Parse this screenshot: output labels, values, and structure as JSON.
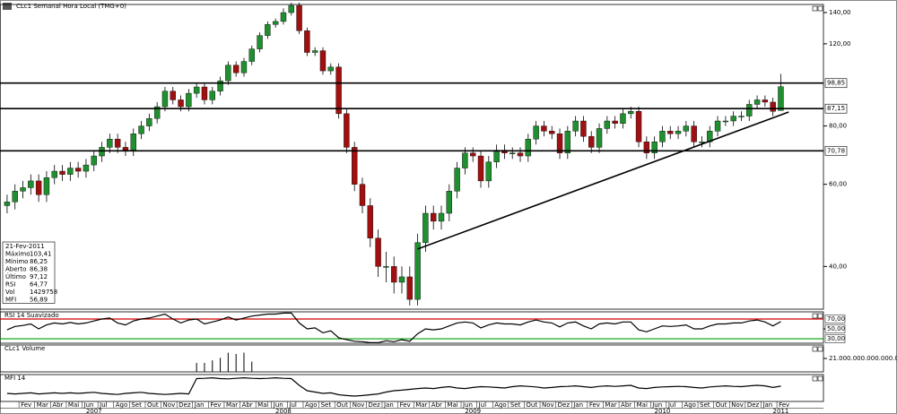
{
  "chart_data": {
    "type": "candlestick",
    "title": "CLc1 Semanal Hora Local (TMG+0)",
    "log": true,
    "up_color": "#1f8f2f",
    "down_color": "#a01010",
    "xlim": [
      -0.9,
      103.4
    ],
    "ylim": [
      32.4,
      145.7
    ],
    "yticks": [
      {
        "value": 140,
        "label": "140,00"
      },
      {
        "value": 120,
        "label": "120,00"
      },
      {
        "value": 80,
        "label": "80,00"
      },
      {
        "value": 60,
        "label": "60,00"
      },
      {
        "value": 40,
        "label": "40,00"
      }
    ],
    "xticks": [
      {
        "value": 1.5,
        "label": "Fev"
      },
      {
        "value": 3.5,
        "label": "Mar"
      },
      {
        "value": 5.5,
        "label": "Abr"
      },
      {
        "value": 7.5,
        "label": "Mai"
      },
      {
        "value": 9.5,
        "label": "Jun"
      },
      {
        "value": 11.5,
        "label": "Jul"
      },
      {
        "value": 13.5,
        "label": "Ago"
      },
      {
        "value": 15.5,
        "label": "Set"
      },
      {
        "value": 17.5,
        "label": "Out"
      },
      {
        "value": 19.5,
        "label": "Nov"
      },
      {
        "value": 21.5,
        "label": "Dez"
      },
      {
        "value": 23.5,
        "label": "Jan"
      },
      {
        "value": 25.5,
        "label": "Fev"
      },
      {
        "value": 27.5,
        "label": "Mar"
      },
      {
        "value": 29.5,
        "label": "Abr"
      },
      {
        "value": 31.5,
        "label": "Mai"
      },
      {
        "value": 33.5,
        "label": "Jun"
      },
      {
        "value": 35.5,
        "label": "Jul"
      },
      {
        "value": 37.5,
        "label": "Ago"
      },
      {
        "value": 39.5,
        "label": "Set"
      },
      {
        "value": 41.5,
        "label": "Out"
      },
      {
        "value": 43.5,
        "label": "Nov"
      },
      {
        "value": 45.5,
        "label": "Dez"
      },
      {
        "value": 47.5,
        "label": "Jan"
      },
      {
        "value": 49.5,
        "label": "Fev"
      },
      {
        "value": 51.5,
        "label": "Mar"
      },
      {
        "value": 53.5,
        "label": "Abr"
      },
      {
        "value": 55.5,
        "label": "Mai"
      },
      {
        "value": 57.5,
        "label": "Jun"
      },
      {
        "value": 59.5,
        "label": "Jul"
      },
      {
        "value": 61.5,
        "label": "Ago"
      },
      {
        "value": 63.5,
        "label": "Set"
      },
      {
        "value": 65.5,
        "label": "Out"
      },
      {
        "value": 67.5,
        "label": "Nov"
      },
      {
        "value": 69.5,
        "label": "Dez"
      },
      {
        "value": 71.5,
        "label": "Jan"
      },
      {
        "value": 73.5,
        "label": "Fev"
      },
      {
        "value": 75.5,
        "label": "Mar"
      },
      {
        "value": 77.5,
        "label": "Abr"
      },
      {
        "value": 79.5,
        "label": "Mai"
      },
      {
        "value": 81.5,
        "label": "Jun"
      },
      {
        "value": 83.5,
        "label": "Jul"
      },
      {
        "value": 85.5,
        "label": "Ago"
      },
      {
        "value": 87.5,
        "label": "Set"
      },
      {
        "value": 89.5,
        "label": "Out"
      },
      {
        "value": 91.5,
        "label": "Nov"
      },
      {
        "value": 93.5,
        "label": "Dez"
      },
      {
        "value": 95.5,
        "label": "Jan"
      },
      {
        "value": 97.5,
        "label": "Fev"
      }
    ],
    "year_labels": [
      {
        "value": 11,
        "label": "2007"
      },
      {
        "value": 35,
        "label": "2008"
      },
      {
        "value": 59,
        "label": "2009"
      },
      {
        "value": 83,
        "label": "2010"
      },
      {
        "value": 98,
        "label": "2011"
      }
    ],
    "open": [
      54,
      55,
      58,
      59,
      61,
      57,
      62,
      64,
      63,
      65,
      64,
      66,
      69,
      72,
      75,
      72,
      71,
      77,
      80,
      83,
      88,
      95,
      91,
      88,
      94,
      97,
      91,
      95,
      100,
      108,
      104,
      110,
      117,
      125,
      132,
      134,
      140,
      145,
      128,
      115,
      116,
      105,
      107,
      85,
      72,
      60,
      54,
      46,
      40,
      40,
      37,
      38,
      34,
      45,
      52,
      50,
      52,
      58,
      65,
      70,
      69,
      61,
      67,
      71,
      70,
      70,
      69,
      75,
      80,
      78,
      77,
      70,
      78,
      82,
      76,
      72,
      79,
      82,
      81,
      85,
      86,
      74,
      70,
      74,
      78,
      77,
      78,
      80,
      74,
      74,
      78,
      82,
      82,
      84,
      84,
      89,
      91,
      90,
      86.38
    ],
    "high": [
      57,
      60,
      61,
      63,
      63,
      64,
      66,
      66,
      67,
      67,
      68,
      71,
      74,
      77,
      77,
      74,
      79,
      82,
      85,
      90,
      97,
      97,
      93,
      96,
      99,
      99,
      97,
      102,
      110,
      110,
      112,
      119,
      127,
      134,
      136,
      143,
      147,
      147,
      130,
      118,
      118,
      109,
      109,
      87,
      74,
      62,
      56,
      48,
      43,
      42,
      40,
      40,
      47,
      54,
      54,
      54,
      60,
      67,
      72,
      72,
      71,
      69,
      73,
      73,
      72,
      72,
      77,
      82,
      82,
      80,
      79,
      80,
      84,
      84,
      78,
      81,
      84,
      84,
      87,
      88,
      88,
      76,
      76,
      80,
      80,
      80,
      82,
      82,
      76,
      80,
      84,
      84,
      86,
      86,
      91,
      93,
      93,
      92,
      103.41
    ],
    "low": [
      52,
      53,
      56,
      57,
      55,
      55,
      60,
      61,
      61,
      62,
      62,
      64,
      67,
      70,
      70,
      69,
      69,
      75,
      78,
      81,
      86,
      89,
      86,
      86,
      92,
      89,
      89,
      93,
      98,
      102,
      102,
      108,
      115,
      123,
      130,
      132,
      138,
      126,
      113,
      113,
      103,
      103,
      83,
      70,
      58,
      52,
      44,
      38,
      37,
      35,
      35,
      33,
      33,
      43,
      48,
      48,
      50,
      56,
      63,
      67,
      59,
      59,
      65,
      68,
      68,
      67,
      67,
      73,
      76,
      75,
      68,
      68,
      76,
      74,
      70,
      70,
      77,
      79,
      79,
      83,
      72,
      68,
      68,
      72,
      75,
      75,
      76,
      72,
      72,
      72,
      76,
      80,
      80,
      82,
      82,
      87,
      88,
      84,
      86.25
    ],
    "close": [
      55,
      58,
      59,
      61,
      57,
      62,
      64,
      63,
      65,
      64,
      66,
      69,
      72,
      75,
      72,
      71,
      77,
      80,
      83,
      88,
      95,
      91,
      88,
      94,
      97,
      91,
      95,
      100,
      108,
      104,
      110,
      117,
      125,
      132,
      134,
      140,
      145,
      128,
      115,
      116,
      105,
      107,
      85,
      72,
      60,
      54,
      46,
      40,
      40,
      37,
      38,
      34,
      45,
      52,
      50,
      52,
      58,
      65,
      70,
      69,
      61,
      67,
      71,
      70,
      70,
      69,
      75,
      80,
      78,
      77,
      70,
      78,
      82,
      76,
      72,
      79,
      82,
      81,
      85,
      86,
      74,
      70,
      74,
      78,
      77,
      78,
      80,
      74,
      74,
      78,
      82,
      82,
      84,
      84,
      89,
      91,
      90,
      86,
      97.12
    ],
    "levels": [
      {
        "value": 98.85,
        "label": "98,85"
      },
      {
        "value": 87.15,
        "label": "87,15"
      },
      {
        "value": 70.78,
        "label": "70,78"
      }
    ],
    "trendline": {
      "x": [
        52,
        99
      ],
      "y": [
        43.6,
        85.7
      ]
    },
    "info": {
      "date": "21-Fev-2011",
      "rows": [
        [
          "Máximo",
          "103,41"
        ],
        [
          "Mínimo",
          "86,25"
        ],
        [
          "Aberto",
          "86,38"
        ],
        [
          "Último",
          "97,12"
        ],
        [
          "RSI",
          "64,77"
        ],
        [
          "Vol",
          "1429758"
        ],
        [
          "MFI",
          "56,89"
        ]
      ]
    },
    "rsi": {
      "title": "RSI 14 Suavizado",
      "color": "#000000",
      "overbought_color": "#d00000",
      "oversold_color": "#00a000",
      "ylim": [
        21,
        84.5
      ],
      "yticks": [
        {
          "value": 70,
          "label": "70,00"
        },
        {
          "value": 50,
          "label": "50,00"
        },
        {
          "value": 30,
          "label": "30,00"
        }
      ],
      "values": [
        48,
        55,
        57,
        60,
        50,
        58,
        62,
        60,
        63,
        60,
        62,
        66,
        70,
        72,
        62,
        58,
        66,
        70,
        72,
        76,
        80,
        70,
        62,
        68,
        70,
        60,
        64,
        68,
        74,
        68,
        72,
        76,
        78,
        80,
        80,
        82,
        82,
        62,
        50,
        52,
        42,
        46,
        32,
        28,
        25,
        24,
        22,
        22,
        26,
        24,
        28,
        25,
        40,
        50,
        48,
        50,
        56,
        62,
        64,
        62,
        52,
        58,
        62,
        60,
        60,
        58,
        64,
        68,
        64,
        62,
        54,
        62,
        64,
        56,
        50,
        60,
        62,
        60,
        64,
        64,
        48,
        44,
        50,
        56,
        55,
        56,
        58,
        50,
        50,
        56,
        60,
        60,
        62,
        62,
        66,
        68,
        64,
        56,
        64.77
      ]
    },
    "volume": {
      "title": "CLc1 Volume",
      "color": "#000000",
      "ylim": [
        0,
        42000000000000000
      ],
      "yticks": [
        {
          "value": 21000000000000000,
          "label": "21.000.000.000.000.000"
        }
      ],
      "values": [
        null,
        null,
        null,
        null,
        null,
        null,
        null,
        null,
        null,
        null,
        null,
        null,
        null,
        null,
        null,
        null,
        null,
        null,
        null,
        null,
        null,
        null,
        null,
        null,
        14000000000000000,
        14000000000000000,
        18000000000000000,
        22000000000000000,
        30000000000000000,
        28000000000000000,
        30000000000000000,
        16000000000000000,
        null,
        null,
        null,
        null,
        null,
        null,
        null,
        null,
        null,
        null,
        null,
        null,
        null,
        null,
        null,
        null,
        null,
        null,
        null,
        null,
        null,
        null,
        null,
        null,
        null,
        null,
        null,
        null,
        null,
        null,
        null,
        null,
        null,
        null,
        null,
        null,
        null,
        null,
        null,
        null,
        null,
        null,
        null,
        null,
        null,
        null,
        null,
        null,
        null,
        null,
        null,
        null,
        null,
        null,
        null,
        null,
        null,
        null,
        null,
        null,
        null,
        null,
        null,
        null,
        null,
        null,
        null
      ]
    },
    "mfi": {
      "title": "MFI 14",
      "color": "#000000",
      "ylim": [
        0,
        100
      ],
      "values": [
        30,
        28,
        30,
        32,
        28,
        30,
        32,
        30,
        32,
        30,
        32,
        34,
        30,
        28,
        26,
        30,
        32,
        34,
        30,
        28,
        26,
        28,
        30,
        28,
        85,
        86,
        88,
        85,
        84,
        86,
        88,
        86,
        85,
        86,
        88,
        86,
        85,
        60,
        40,
        35,
        30,
        32,
        25,
        22,
        20,
        22,
        25,
        28,
        35,
        40,
        42,
        45,
        48,
        50,
        48,
        52,
        55,
        50,
        48,
        52,
        55,
        54,
        52,
        50,
        55,
        58,
        56,
        54,
        50,
        52,
        55,
        56,
        58,
        55,
        52,
        56,
        58,
        56,
        58,
        60,
        50,
        48,
        52,
        54,
        55,
        56,
        55,
        52,
        50,
        54,
        56,
        58,
        56,
        55,
        58,
        60,
        58,
        52,
        56.89
      ]
    }
  }
}
